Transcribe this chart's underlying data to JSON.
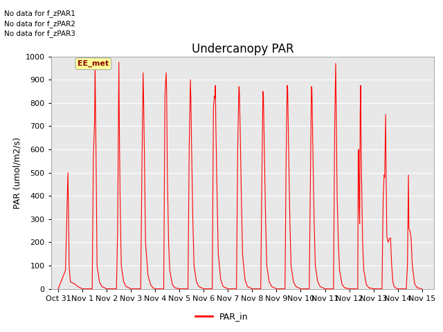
{
  "title": "Undercanopy PAR",
  "ylabel": "PAR (umol/m2/s)",
  "bg_color": "#e8e8e8",
  "line_color": "#ff0000",
  "legend_label": "PAR_in",
  "no_data_texts": [
    "No data for f_zPAR1",
    "No data for f_zPAR2",
    "No data for f_zPAR3"
  ],
  "ee_met_label": "EE_met",
  "ylim": [
    0,
    1000
  ],
  "yticks": [
    0,
    100,
    200,
    300,
    400,
    500,
    600,
    700,
    800,
    900,
    1000
  ],
  "xlim": [
    -0.3,
    15.5
  ],
  "xtick_labels": [
    "Oct 31",
    "Nov 1",
    "Nov 2",
    "Nov 3",
    "Nov 4",
    "Nov 5",
    "Nov 6",
    "Nov 7",
    "Nov 8",
    "Nov 9",
    "Nov 10",
    "Nov 11",
    "Nov 12",
    "Nov 13",
    "Nov 14",
    "Nov 15"
  ],
  "xtick_positions": [
    0,
    1,
    2,
    3,
    4,
    5,
    6,
    7,
    8,
    9,
    10,
    11,
    12,
    13,
    14,
    15
  ],
  "data": [
    [
      0.0,
      0
    ],
    [
      0.3,
      80
    ],
    [
      0.4,
      500
    ],
    [
      0.42,
      370
    ],
    [
      0.45,
      100
    ],
    [
      0.5,
      30
    ],
    [
      0.6,
      25
    ],
    [
      0.7,
      20
    ],
    [
      0.8,
      10
    ],
    [
      0.9,
      5
    ],
    [
      1.0,
      0
    ],
    [
      1.4,
      0
    ],
    [
      1.45,
      575
    ],
    [
      1.5,
      720
    ],
    [
      1.52,
      975
    ],
    [
      1.54,
      750
    ],
    [
      1.56,
      580
    ],
    [
      1.6,
      100
    ],
    [
      1.7,
      30
    ],
    [
      1.8,
      10
    ],
    [
      1.9,
      5
    ],
    [
      2.0,
      0
    ],
    [
      2.4,
      0
    ],
    [
      2.45,
      250
    ],
    [
      2.5,
      975
    ],
    [
      2.52,
      700
    ],
    [
      2.55,
      400
    ],
    [
      2.6,
      100
    ],
    [
      2.7,
      30
    ],
    [
      2.8,
      10
    ],
    [
      2.9,
      5
    ],
    [
      3.0,
      0
    ],
    [
      3.4,
      0
    ],
    [
      3.45,
      510
    ],
    [
      3.5,
      930
    ],
    [
      3.52,
      825
    ],
    [
      3.55,
      600
    ],
    [
      3.6,
      200
    ],
    [
      3.7,
      60
    ],
    [
      3.8,
      20
    ],
    [
      3.9,
      5
    ],
    [
      4.0,
      0
    ],
    [
      4.35,
      0
    ],
    [
      4.4,
      830
    ],
    [
      4.45,
      930
    ],
    [
      4.47,
      850
    ],
    [
      4.5,
      500
    ],
    [
      4.55,
      200
    ],
    [
      4.6,
      80
    ],
    [
      4.7,
      20
    ],
    [
      4.8,
      5
    ],
    [
      5.0,
      0
    ],
    [
      5.35,
      0
    ],
    [
      5.4,
      600
    ],
    [
      5.45,
      900
    ],
    [
      5.47,
      820
    ],
    [
      5.5,
      600
    ],
    [
      5.55,
      300
    ],
    [
      5.6,
      100
    ],
    [
      5.7,
      30
    ],
    [
      5.8,
      10
    ],
    [
      5.9,
      5
    ],
    [
      6.0,
      0
    ],
    [
      6.35,
      0
    ],
    [
      6.4,
      780
    ],
    [
      6.44,
      830
    ],
    [
      6.46,
      820
    ],
    [
      6.48,
      875
    ],
    [
      6.5,
      700
    ],
    [
      6.55,
      400
    ],
    [
      6.6,
      150
    ],
    [
      6.7,
      40
    ],
    [
      6.8,
      10
    ],
    [
      6.9,
      5
    ],
    [
      7.0,
      0
    ],
    [
      7.35,
      0
    ],
    [
      7.4,
      600
    ],
    [
      7.45,
      870
    ],
    [
      7.47,
      850
    ],
    [
      7.5,
      700
    ],
    [
      7.55,
      400
    ],
    [
      7.6,
      150
    ],
    [
      7.7,
      40
    ],
    [
      7.8,
      10
    ],
    [
      7.9,
      5
    ],
    [
      8.0,
      0
    ],
    [
      8.35,
      0
    ],
    [
      8.4,
      500
    ],
    [
      8.44,
      850
    ],
    [
      8.46,
      830
    ],
    [
      8.5,
      600
    ],
    [
      8.55,
      300
    ],
    [
      8.6,
      100
    ],
    [
      8.7,
      30
    ],
    [
      8.8,
      10
    ],
    [
      8.9,
      5
    ],
    [
      9.0,
      0
    ],
    [
      9.35,
      0
    ],
    [
      9.4,
      590
    ],
    [
      9.44,
      875
    ],
    [
      9.46,
      860
    ],
    [
      9.5,
      600
    ],
    [
      9.55,
      300
    ],
    [
      9.6,
      100
    ],
    [
      9.7,
      30
    ],
    [
      9.8,
      10
    ],
    [
      9.9,
      5
    ],
    [
      10.0,
      0
    ],
    [
      10.35,
      0
    ],
    [
      10.4,
      500
    ],
    [
      10.44,
      870
    ],
    [
      10.46,
      860
    ],
    [
      10.5,
      600
    ],
    [
      10.55,
      300
    ],
    [
      10.6,
      100
    ],
    [
      10.7,
      30
    ],
    [
      10.8,
      10
    ],
    [
      10.9,
      5
    ],
    [
      11.0,
      0
    ],
    [
      11.35,
      0
    ],
    [
      11.4,
      700
    ],
    [
      11.44,
      970
    ],
    [
      11.46,
      800
    ],
    [
      11.5,
      400
    ],
    [
      11.55,
      200
    ],
    [
      11.6,
      80
    ],
    [
      11.7,
      20
    ],
    [
      11.8,
      5
    ],
    [
      12.0,
      0
    ],
    [
      12.35,
      0
    ],
    [
      12.37,
      590
    ],
    [
      12.39,
      600
    ],
    [
      12.41,
      350
    ],
    [
      12.43,
      280
    ],
    [
      12.45,
      750
    ],
    [
      12.47,
      875
    ],
    [
      12.49,
      600
    ],
    [
      12.52,
      400
    ],
    [
      12.55,
      200
    ],
    [
      12.6,
      80
    ],
    [
      12.7,
      20
    ],
    [
      12.8,
      5
    ],
    [
      13.0,
      0
    ],
    [
      13.35,
      0
    ],
    [
      13.4,
      400
    ],
    [
      13.44,
      490
    ],
    [
      13.46,
      480
    ],
    [
      13.5,
      750
    ],
    [
      13.52,
      490
    ],
    [
      13.55,
      225
    ],
    [
      13.6,
      200
    ],
    [
      13.65,
      215
    ],
    [
      13.7,
      220
    ],
    [
      13.75,
      100
    ],
    [
      13.8,
      30
    ],
    [
      13.85,
      10
    ],
    [
      13.9,
      5
    ],
    [
      14.0,
      0
    ],
    [
      14.35,
      0
    ],
    [
      14.4,
      100
    ],
    [
      14.44,
      490
    ],
    [
      14.46,
      260
    ],
    [
      14.5,
      250
    ],
    [
      14.55,
      220
    ],
    [
      14.6,
      100
    ],
    [
      14.7,
      20
    ],
    [
      14.8,
      5
    ],
    [
      15.0,
      0
    ]
  ]
}
